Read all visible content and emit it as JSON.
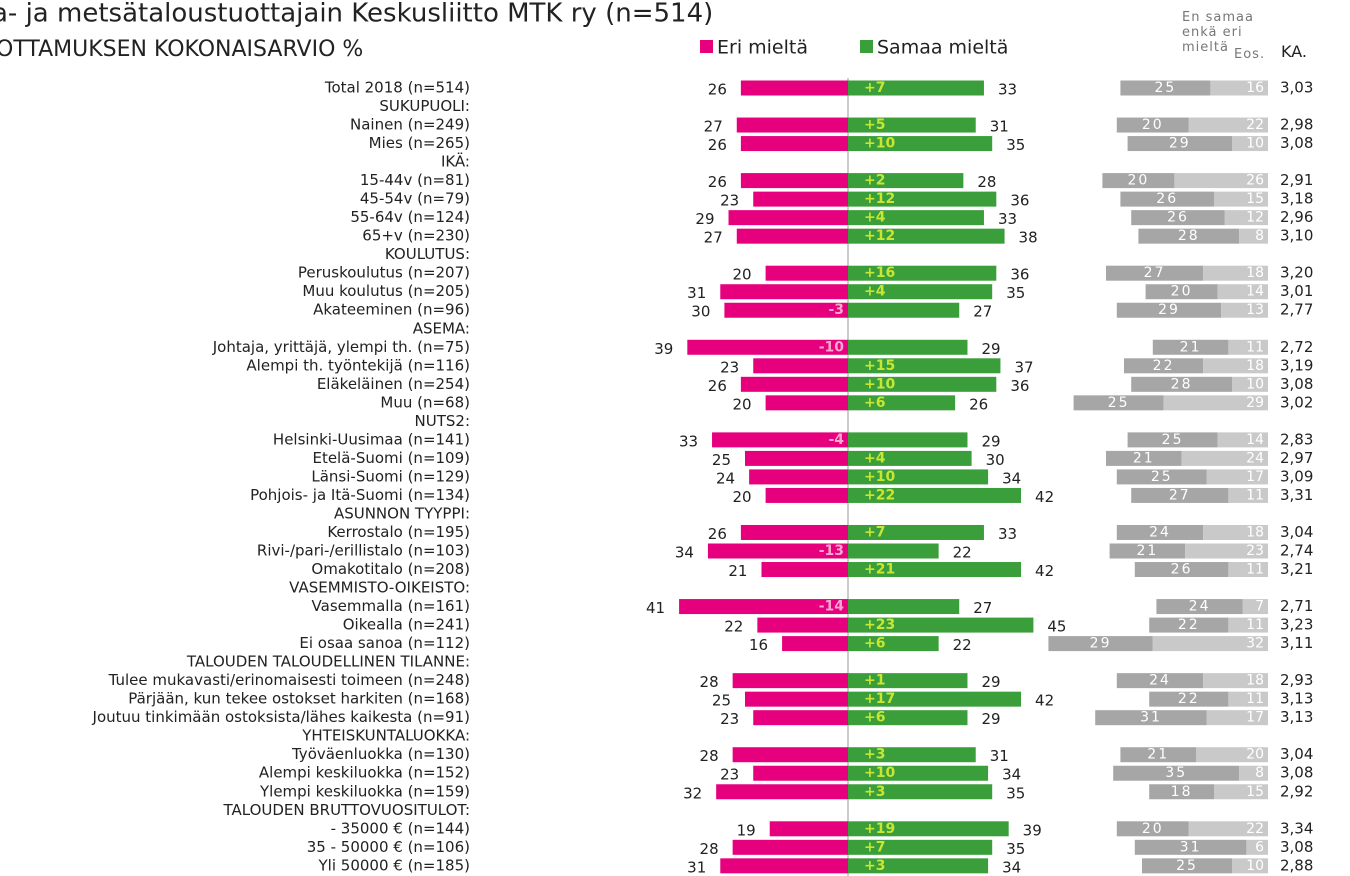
{
  "chart_data": {
    "type": "diverging_bar",
    "title": "a- ja metsätaloustuottajain Keskusliitto MTK ry  (n=514)",
    "subtitle": "OTTAMUKSEN KOKONAISARVIO %",
    "categories": [
      "Total 2018 (n=514)",
      "SUKUPUOLI:",
      "Nainen (n=249)",
      "Mies (n=265)",
      "IKÄ:",
      "15-44v (n=81)",
      "45-54v (n=79)",
      "55-64v (n=124)",
      "65+v (n=230)",
      "KOULUTUS:",
      "Peruskoulutus (n=207)",
      "Muu koulutus (n=205)",
      "Akateeminen (n=96)",
      "ASEMA:",
      "Johtaja, yrittäjä, ylempi th. (n=75)",
      "Alempi th. työntekijä (n=116)",
      "Eläkeläinen (n=254)",
      "Muu (n=68)",
      "NUTS2:",
      "Helsinki-Uusimaa (n=141)",
      "Etelä-Suomi (n=109)",
      "Länsi-Suomi (n=129)",
      "Pohjois- ja Itä-Suomi (n=134)",
      "ASUNNON TYYPPI:",
      "Kerrostalo (n=195)",
      "Rivi-/pari-/erillistalo (n=103)",
      "Omakotitalo (n=208)",
      "VASEMMISTO-OIKEISTO:",
      "Vasemmalla (n=161)",
      "Oikealla (n=241)",
      "Ei osaa sanoa (n=112)",
      "TALOUDEN TALOUDELLINEN TILANNE:",
      "Tulee mukavasti/erinomaisesti toimeen (n=248)",
      "Pärjään, kun tekee ostokset harkiten (n=168)",
      "Joutuu tinkimään ostoksista/lähes kaikesta (n=91)",
      "YHTEISKUNTALUOKKA:",
      "Työväenluokka (n=130)",
      "Alempi keskiluokka (n=152)",
      "Ylempi keskiluokka (n=159)",
      "TALOUDEN BRUTTOVUOSITULOT:",
      "- 35000 € (n=144)",
      "35 - 50000 € (n=106)",
      "Yli 50000 € (n=185)"
    ],
    "series": [
      {
        "name": "Eri mieltä",
        "color": "#e6007e",
        "values": [
          26,
          null,
          27,
          26,
          null,
          26,
          23,
          29,
          27,
          null,
          20,
          31,
          30,
          null,
          39,
          23,
          26,
          20,
          null,
          33,
          25,
          24,
          20,
          null,
          26,
          34,
          21,
          null,
          41,
          22,
          16,
          null,
          28,
          25,
          23,
          null,
          28,
          23,
          32,
          null,
          19,
          28,
          31
        ]
      },
      {
        "name": "Samaa mieltä",
        "color": "#3a9e3a",
        "values": [
          33,
          null,
          31,
          35,
          null,
          28,
          36,
          33,
          38,
          null,
          36,
          35,
          27,
          null,
          29,
          37,
          36,
          26,
          null,
          29,
          30,
          34,
          42,
          null,
          33,
          22,
          42,
          null,
          27,
          45,
          22,
          null,
          29,
          42,
          29,
          null,
          31,
          34,
          35,
          null,
          39,
          35,
          34
        ]
      },
      {
        "name": "En samaa enkä eri mieltä",
        "color": "#a6a6a6",
        "values": [
          25,
          null,
          20,
          29,
          null,
          20,
          26,
          26,
          28,
          null,
          27,
          20,
          29,
          null,
          21,
          22,
          28,
          25,
          null,
          25,
          21,
          25,
          27,
          null,
          24,
          21,
          26,
          null,
          24,
          22,
          29,
          null,
          24,
          22,
          31,
          null,
          21,
          35,
          18,
          null,
          20,
          31,
          25
        ]
      },
      {
        "name": "Eos.",
        "color": "#c9c9c9",
        "values": [
          16,
          null,
          22,
          10,
          null,
          26,
          15,
          12,
          8,
          null,
          18,
          14,
          13,
          null,
          11,
          18,
          10,
          29,
          null,
          14,
          24,
          17,
          11,
          null,
          18,
          23,
          11,
          null,
          7,
          11,
          32,
          null,
          18,
          11,
          17,
          null,
          20,
          8,
          15,
          null,
          22,
          6,
          10
        ]
      }
    ],
    "net": {
      "values": [
        7,
        null,
        5,
        10,
        null,
        2,
        12,
        4,
        12,
        null,
        16,
        4,
        -3,
        null,
        -10,
        15,
        10,
        6,
        null,
        -4,
        4,
        10,
        22,
        null,
        7,
        -13,
        21,
        null,
        -14,
        23,
        6,
        null,
        1,
        17,
        6,
        null,
        3,
        10,
        3,
        null,
        19,
        7,
        3
      ],
      "value_labels": [
        "+7",
        null,
        "+5",
        "+10",
        null,
        "+2",
        "+12",
        "+4",
        "+12",
        null,
        "+16",
        "+4",
        "-3",
        null,
        "-10",
        "+15",
        "+10",
        "+6",
        null,
        "-4",
        "+4",
        "+10",
        "+22",
        null,
        "+7",
        "-13",
        "+21",
        null,
        "-14",
        "+23",
        "+6",
        null,
        "+1",
        "+17",
        "+6",
        null,
        "+3",
        "+10",
        "+3",
        null,
        "+19",
        "+7",
        "+3"
      ]
    },
    "mean": {
      "name": "KA.",
      "values": [
        3.03,
        null,
        2.98,
        3.08,
        null,
        2.91,
        3.18,
        2.96,
        3.1,
        null,
        3.2,
        3.01,
        2.77,
        null,
        2.72,
        3.19,
        3.08,
        3.02,
        null,
        2.83,
        2.97,
        3.09,
        3.31,
        null,
        3.04,
        2.74,
        3.21,
        null,
        2.71,
        3.23,
        3.11,
        null,
        2.93,
        3.13,
        3.13,
        null,
        3.04,
        3.08,
        2.92,
        null,
        3.34,
        3.08,
        2.88
      ],
      "value_labels": [
        "3,03",
        null,
        "2,98",
        "3,08",
        null,
        "2,91",
        "3,18",
        "2,96",
        "3,10",
        null,
        "3,20",
        "3,01",
        "2,77",
        null,
        "2,72",
        "3,19",
        "3,08",
        "3,02",
        null,
        "2,83",
        "2,97",
        "3,09",
        "3,31",
        null,
        "3,04",
        "2,74",
        "3,21",
        null,
        "2,71",
        "3,23",
        "3,11",
        null,
        "2,93",
        "3,13",
        "3,13",
        null,
        "3,04",
        "3,08",
        "2,92",
        null,
        "3,34",
        "3,08",
        "2,88"
      ]
    }
  }
}
